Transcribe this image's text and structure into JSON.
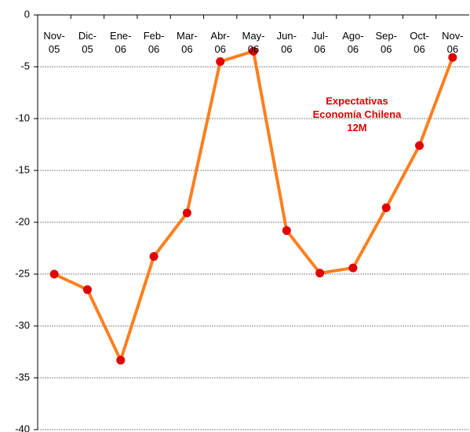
{
  "chart_data": {
    "type": "line",
    "annotation": "Expectativas Economía Chilena 12M",
    "categories": [
      "Nov-05",
      "Dic-05",
      "Ene-06",
      "Feb-06",
      "Mar-06",
      "Abr-06",
      "May-06",
      "Jun-06",
      "Jul-06",
      "Ago-06",
      "Sep-06",
      "Oct-06",
      "Nov-06"
    ],
    "series": [
      {
        "color": "#ff7f1f",
        "marker_color": "#e00000",
        "values": [
          -25.0,
          -26.5,
          -33.3,
          -23.3,
          -19.1,
          -4.5,
          -3.5,
          -20.8,
          -24.9,
          -24.4,
          -18.6,
          -12.6,
          -4.1
        ]
      }
    ],
    "ylim": [
      -40,
      0
    ],
    "yticks": [
      -40,
      -35,
      -30,
      -25,
      -20,
      -15,
      -10,
      -5,
      0
    ],
    "grid": true
  }
}
